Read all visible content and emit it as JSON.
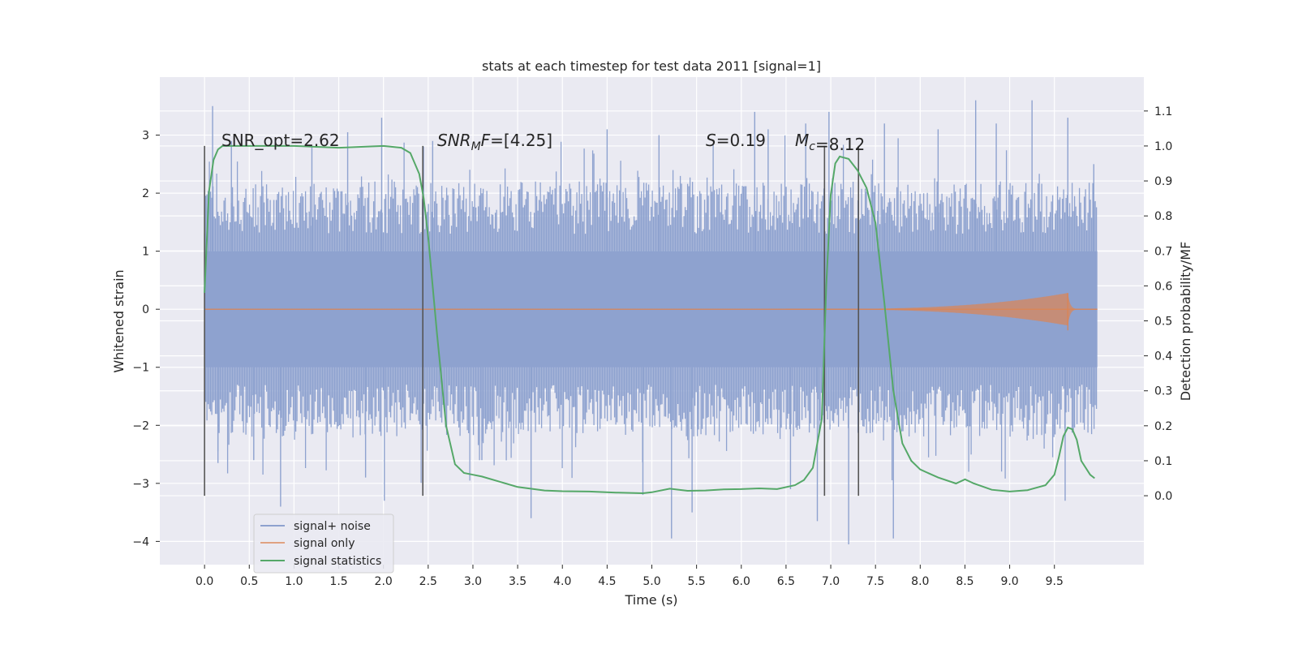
{
  "chart_data": {
    "type": "line",
    "title": "stats at each timestep for test data 2011 [signal=1]",
    "xlabel": "Time (s)",
    "ylabel": "Whitened strain",
    "ylabel_right": "Detection probability/MF",
    "xlim": [
      -0.5,
      10.5
    ],
    "ylim": [
      -4.4,
      4.0
    ],
    "ylim_right": [
      -0.197,
      1.197
    ],
    "x_ticks": [
      "0.0",
      "0.5",
      "1.0",
      "1.5",
      "2.0",
      "2.5",
      "3.0",
      "3.5",
      "4.0",
      "4.5",
      "5.0",
      "5.5",
      "6.0",
      "6.5",
      "7.0",
      "7.5",
      "8.0",
      "8.5",
      "9.0",
      "9.5"
    ],
    "y_ticks": [
      "3",
      "2",
      "1",
      "0",
      "−1",
      "−2",
      "−3",
      "−4"
    ],
    "y_right_ticks": [
      "1.1",
      "1.0",
      "0.9",
      "0.8",
      "0.7",
      "0.6",
      "0.5",
      "0.4",
      "0.3",
      "0.2",
      "0.1",
      "0.0"
    ],
    "grid": true,
    "legend_position": "lower-left",
    "legend": [
      "signal+ noise",
      "signal only",
      "signal statistics"
    ],
    "colors": {
      "noise": "#8ea2cf",
      "signal": "#dd8452",
      "stats": "#55a868",
      "background": "#eaeaf2",
      "vline": "#555555"
    },
    "annotations": [
      {
        "prefix": "SNR_opt=",
        "sub": "",
        "value": "2.62"
      },
      {
        "prefix": "SNR",
        "sub": "M",
        "mid": "F",
        "value": "=[4.25]"
      },
      {
        "prefix": "S",
        "sub": "",
        "value": "=0.19"
      },
      {
        "prefix": "M",
        "sub": "c",
        "value": "=8.12"
      }
    ],
    "vertical_lines_x": [
      0.0,
      2.44,
      6.93,
      7.31
    ],
    "series": [
      {
        "name": "signal+ noise",
        "x_range": [
          0.0,
          9.98
        ],
        "band_y": [
          -1.0,
          1.0
        ],
        "spikes": [
          {
            "x": 0.09,
            "y": 3.5
          },
          {
            "x": 0.15,
            "y": -2.65
          },
          {
            "x": 0.3,
            "y": 2.9
          },
          {
            "x": 0.55,
            "y": -2.6
          },
          {
            "x": 0.85,
            "y": -3.4
          },
          {
            "x": 1.2,
            "y": 2.8
          },
          {
            "x": 1.6,
            "y": 3.05
          },
          {
            "x": 1.8,
            "y": -2.9
          },
          {
            "x": 1.98,
            "y": 3.3
          },
          {
            "x": 2.01,
            "y": -3.3
          },
          {
            "x": 2.55,
            "y": 2.9
          },
          {
            "x": 3.1,
            "y": -2.6
          },
          {
            "x": 3.65,
            "y": -3.6
          },
          {
            "x": 4.5,
            "y": 3.1
          },
          {
            "x": 4.9,
            "y": -3.2
          },
          {
            "x": 5.08,
            "y": 3.0
          },
          {
            "x": 5.22,
            "y": -3.95
          },
          {
            "x": 5.45,
            "y": -3.5
          },
          {
            "x": 6.15,
            "y": 3.4
          },
          {
            "x": 6.3,
            "y": 3.1
          },
          {
            "x": 6.55,
            "y": -3.1
          },
          {
            "x": 6.72,
            "y": 3.2
          },
          {
            "x": 6.85,
            "y": -3.65
          },
          {
            "x": 6.98,
            "y": 3.4
          },
          {
            "x": 7.2,
            "y": -4.05
          },
          {
            "x": 7.6,
            "y": 3.2
          },
          {
            "x": 7.7,
            "y": -3.95
          },
          {
            "x": 8.2,
            "y": 3.1
          },
          {
            "x": 8.62,
            "y": 3.6
          },
          {
            "x": 8.85,
            "y": 3.2
          },
          {
            "x": 9.25,
            "y": 3.6
          },
          {
            "x": 9.62,
            "y": -3.3
          },
          {
            "x": 9.65,
            "y": 3.3
          },
          {
            "x": 9.94,
            "y": 2.5
          }
        ]
      },
      {
        "name": "signal only",
        "chirp": {
          "t_start": 6.5,
          "t_merge": 9.65,
          "peak_amplitude": 0.28,
          "t_end": 9.98
        }
      },
      {
        "name": "signal statistics",
        "axis": "right",
        "x": [
          0.0,
          0.05,
          0.1,
          0.15,
          0.2,
          0.3,
          0.5,
          1.0,
          1.5,
          2.0,
          2.2,
          2.3,
          2.4,
          2.45,
          2.5,
          2.6,
          2.7,
          2.8,
          2.9,
          3.0,
          3.1,
          3.3,
          3.5,
          3.8,
          4.0,
          4.3,
          4.6,
          4.9,
          5.0,
          5.2,
          5.4,
          5.6,
          5.8,
          6.0,
          6.2,
          6.4,
          6.6,
          6.7,
          6.8,
          6.9,
          6.95,
          7.0,
          7.05,
          7.1,
          7.2,
          7.3,
          7.4,
          7.5,
          7.6,
          7.7,
          7.8,
          7.9,
          8.0,
          8.2,
          8.4,
          8.5,
          8.6,
          8.8,
          9.0,
          9.2,
          9.4,
          9.5,
          9.55,
          9.6,
          9.65,
          9.7,
          9.75,
          9.8,
          9.9,
          9.95
        ],
        "values": [
          0.58,
          0.87,
          0.96,
          0.99,
          1.0,
          1.0,
          1.0,
          1.0,
          0.995,
          1.0,
          0.995,
          0.98,
          0.92,
          0.85,
          0.74,
          0.46,
          0.2,
          0.09,
          0.065,
          0.06,
          0.055,
          0.04,
          0.025,
          0.015,
          0.013,
          0.012,
          0.009,
          0.007,
          0.01,
          0.02,
          0.014,
          0.015,
          0.018,
          0.019,
          0.021,
          0.019,
          0.03,
          0.045,
          0.08,
          0.22,
          0.6,
          0.86,
          0.95,
          0.97,
          0.963,
          0.93,
          0.88,
          0.78,
          0.55,
          0.3,
          0.15,
          0.1,
          0.075,
          0.052,
          0.035,
          0.047,
          0.035,
          0.017,
          0.012,
          0.016,
          0.03,
          0.06,
          0.11,
          0.17,
          0.195,
          0.19,
          0.16,
          0.1,
          0.06,
          0.05
        ]
      }
    ]
  }
}
